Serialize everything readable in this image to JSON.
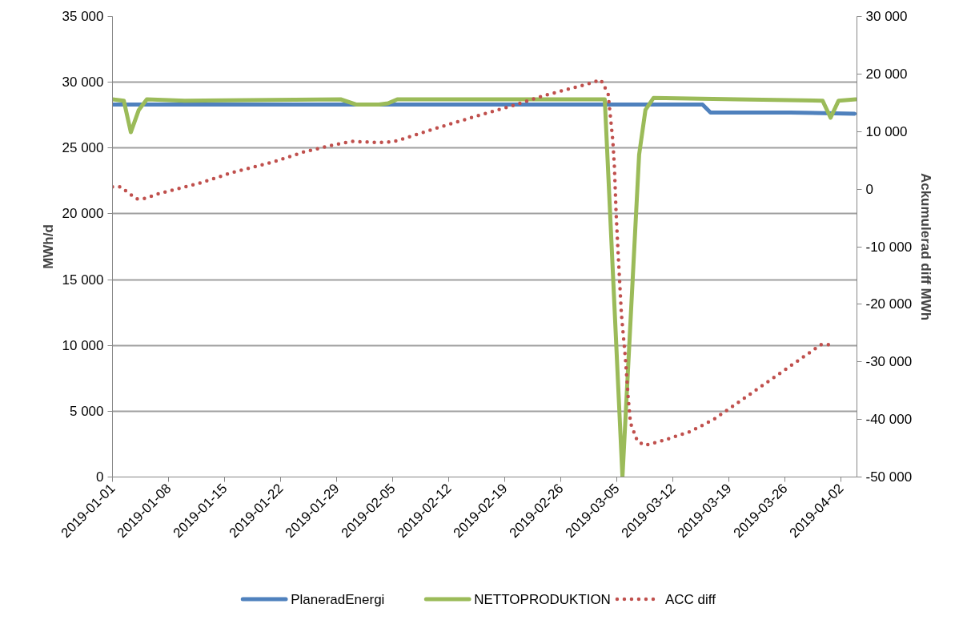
{
  "chart_data": {
    "type": "line",
    "ylabel": "MWh/d",
    "y2label": "Ackumulerad diff MWh",
    "xlim": [
      "2019-01-01",
      "2019-04-04"
    ],
    "xticks": [
      "2019-01-01",
      "2019-01-08",
      "2019-01-15",
      "2019-01-22",
      "2019-01-29",
      "2019-02-05",
      "2019-02-12",
      "2019-02-19",
      "2019-02-26",
      "2019-03-05",
      "2019-03-12",
      "2019-03-19",
      "2019-03-26",
      "2019-04-02"
    ],
    "ylim": [
      0,
      35000
    ],
    "yticks": [
      0,
      {
        "value": 5000,
        "label": "5 000"
      },
      {
        "value": 10000,
        "label": "10 000"
      },
      {
        "value": 15000,
        "label": "15 000"
      },
      {
        "value": 20000,
        "label": "20 000"
      },
      {
        "value": 25000,
        "label": "25 000"
      },
      {
        "value": 30000,
        "label": "30 000"
      },
      {
        "value": 35000,
        "label": "35 000"
      }
    ],
    "y2lim": [
      -50000,
      30000
    ],
    "y2ticks": [
      {
        "value": -50000,
        "label": "-50 000"
      },
      {
        "value": -40000,
        "label": "-40 000"
      },
      {
        "value": -30000,
        "label": "-30 000"
      },
      {
        "value": -20000,
        "label": "-20 000"
      },
      {
        "value": -10000,
        "label": "-10 000"
      },
      0,
      {
        "value": 10000,
        "label": "10 000"
      },
      {
        "value": 20000,
        "label": "20 000"
      },
      {
        "value": 30000,
        "label": "30 000"
      }
    ],
    "grid": "y",
    "legend": "bottom",
    "marker": "none",
    "series": [
      {
        "name": "PlaneradEnergi",
        "color": "#4f81bd",
        "line_style": "solid",
        "x": [
          "2019-01-01",
          "2019-03-15T17:00",
          "2019-03-16T17:00",
          "2019-03-26T17:00",
          "2019-04-03T17:00"
        ],
        "values": [
          28300,
          28300,
          27700,
          27700,
          27600
        ]
      },
      {
        "name": "NETTOPRODUKTION",
        "color": "#9bbb59",
        "line_style": "solid",
        "x": [
          "2019-01-01",
          "2019-01-02T10:00",
          "2019-01-03T07:00",
          "2019-01-04T07:00",
          "2019-01-05T07:00",
          "2019-01-10",
          "2019-01-29T12:00",
          "2019-01-31T12:00",
          "2019-02-03T07:00",
          "2019-02-04T10:00",
          "2019-02-05T14:00",
          "2019-03-03T12:00",
          "2019-03-05T17:00",
          "2019-03-07T19:00",
          "2019-03-08T14:00",
          "2019-03-09T14:00",
          "2019-03-20",
          "2019-03-30T17:00",
          "2019-03-31T17:00",
          "2019-04-01T17:00",
          "2019-04-03T20:00"
        ],
        "values": [
          28700,
          28600,
          26200,
          27900,
          28700,
          28600,
          28700,
          28300,
          28300,
          28400,
          28700,
          28700,
          0,
          24500,
          27900,
          28800,
          28700,
          28600,
          27300,
          28600,
          28700
        ]
      },
      {
        "name": "ACC diff",
        "color": "#c0504d",
        "line_style": "dotted",
        "axis": "y2",
        "x": [
          "2019-01-01",
          "2019-01-02",
          "2019-01-04",
          "2019-01-05",
          "2019-01-07",
          "2019-01-12",
          "2019-01-16",
          "2019-01-21",
          "2019-01-25",
          "2019-01-29",
          "2019-01-31",
          "2019-02-03",
          "2019-02-05",
          "2019-02-06",
          "2019-02-10",
          "2019-02-16",
          "2019-02-20",
          "2019-02-24",
          "2019-03-01",
          "2019-03-03",
          "2019-03-03T22:00",
          "2019-03-04T12:00",
          "2019-03-04T17:00",
          "2019-03-04T22:00",
          "2019-03-05T05:00",
          "2019-03-05T14:00",
          "2019-03-06T02:00",
          "2019-03-06T10:00",
          "2019-03-06T17:00",
          "2019-03-07T14:00",
          "2019-03-08T12:00",
          "2019-03-10T22:00",
          "2019-03-14T05:00",
          "2019-03-17T05:00",
          "2019-03-19T02:00",
          "2019-03-23",
          "2019-03-26T17:00",
          "2019-03-29T12:00",
          "2019-03-30T12:00",
          "2019-03-31T14:00"
        ],
        "values": [
          400,
          400,
          -1700,
          -1600,
          -700,
          1100,
          2900,
          4700,
          6500,
          7800,
          8300,
          8100,
          8200,
          8600,
          10400,
          12900,
          14500,
          16300,
          18100,
          19000,
          16600,
          8500,
          3800,
          -4200,
          -12200,
          -21800,
          -29500,
          -36000,
          -40600,
          -43800,
          -44500,
          -43600,
          -42100,
          -39900,
          -38100,
          -34300,
          -30700,
          -28000,
          -27000,
          -27000
        ]
      }
    ]
  }
}
